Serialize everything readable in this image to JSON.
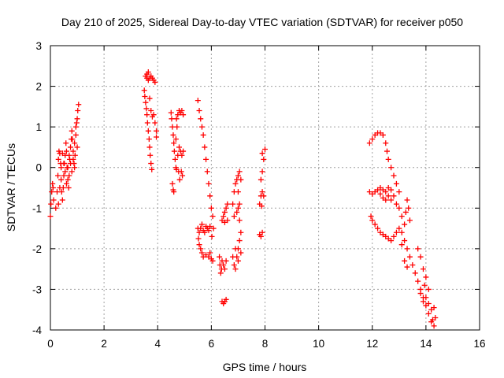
{
  "chart_data": {
    "type": "scatter",
    "title": "Day 210 of 2025, Sidereal Day-to-day VTEC variation (SDTVAR) for receiver p050",
    "xlabel": "GPS time / hours",
    "ylabel": "SDTVAR / TECUs",
    "xlim": [
      0,
      16
    ],
    "ylim": [
      -4,
      3
    ],
    "xticks": [
      "0",
      "2",
      "4",
      "6",
      "8",
      "10",
      "12",
      "14",
      "16"
    ],
    "yticks": [
      "-4",
      "-3",
      "-2",
      "-1",
      "0",
      "1",
      "2",
      "3"
    ],
    "grid": true,
    "marker": "plus",
    "color": "#ff0000",
    "series": [
      {
        "points": [
          [
            0.0,
            -1.2
          ],
          [
            0.02,
            -0.9
          ],
          [
            0.05,
            -0.6
          ],
          [
            0.08,
            -0.4
          ],
          [
            0.1,
            -0.5
          ],
          [
            0.12,
            -0.8
          ],
          [
            0.2,
            -1.0
          ],
          [
            0.25,
            -0.6
          ],
          [
            0.28,
            -0.2
          ],
          [
            0.3,
            0.2
          ],
          [
            0.32,
            0.4
          ],
          [
            0.35,
            0.35
          ],
          [
            0.38,
            0.1
          ],
          [
            0.4,
            -0.3
          ],
          [
            0.42,
            -0.6
          ],
          [
            0.45,
            -0.8
          ],
          [
            0.48,
            -0.5
          ],
          [
            0.5,
            -0.2
          ],
          [
            0.52,
            0.1
          ],
          [
            0.55,
            0.3
          ],
          [
            0.58,
            0.6
          ],
          [
            0.6,
            0.4
          ],
          [
            0.62,
            0.0
          ],
          [
            0.65,
            -0.3
          ],
          [
            0.68,
            -0.5
          ],
          [
            0.7,
            -0.2
          ],
          [
            0.72,
            0.2
          ],
          [
            0.75,
            0.5
          ],
          [
            0.78,
            0.7
          ],
          [
            0.8,
            0.9
          ],
          [
            0.82,
            0.7
          ],
          [
            0.85,
            0.4
          ],
          [
            0.88,
            0.1
          ],
          [
            0.9,
            0.0
          ],
          [
            0.92,
            0.3
          ],
          [
            0.95,
            0.8
          ],
          [
            0.98,
            1.1
          ],
          [
            1.0,
            1.2
          ],
          [
            1.02,
            1.4
          ],
          [
            1.05,
            1.55
          ],
          [
            0.3,
            -0.9
          ],
          [
            0.35,
            -0.5
          ],
          [
            0.4,
            0.0
          ],
          [
            0.45,
            0.35
          ],
          [
            0.5,
            0.1
          ],
          [
            0.55,
            -0.1
          ],
          [
            0.6,
            -0.4
          ],
          [
            0.65,
            0.0
          ],
          [
            0.7,
            0.3
          ],
          [
            0.75,
            0.1
          ],
          [
            0.8,
            -0.1
          ],
          [
            0.85,
            0.2
          ],
          [
            0.9,
            0.6
          ],
          [
            0.95,
            1.0
          ],
          [
            1.0,
            0.5
          ]
        ]
      },
      {
        "points": [
          [
            3.5,
            1.9
          ],
          [
            3.52,
            1.75
          ],
          [
            3.55,
            1.6
          ],
          [
            3.58,
            1.45
          ],
          [
            3.6,
            1.3
          ],
          [
            3.62,
            1.1
          ],
          [
            3.65,
            0.9
          ],
          [
            3.68,
            0.7
          ],
          [
            3.7,
            0.5
          ],
          [
            3.72,
            0.3
          ],
          [
            3.75,
            0.1
          ],
          [
            3.78,
            -0.05
          ],
          [
            3.55,
            2.25
          ],
          [
            3.6,
            2.3
          ],
          [
            3.65,
            2.35
          ],
          [
            3.7,
            2.2
          ],
          [
            3.75,
            2.25
          ],
          [
            3.8,
            2.2
          ],
          [
            3.85,
            2.15
          ],
          [
            3.9,
            2.1
          ],
          [
            3.6,
            2.2
          ],
          [
            3.65,
            2.15
          ],
          [
            3.7,
            1.7
          ],
          [
            3.75,
            1.4
          ],
          [
            3.8,
            1.25
          ],
          [
            3.85,
            1.3
          ],
          [
            3.9,
            1.1
          ],
          [
            3.95,
            0.9
          ],
          [
            3.95,
            0.75
          ]
        ]
      },
      {
        "points": [
          [
            4.5,
            1.35
          ],
          [
            4.52,
            1.2
          ],
          [
            4.55,
            1.0
          ],
          [
            4.58,
            0.8
          ],
          [
            4.6,
            0.6
          ],
          [
            4.62,
            0.4
          ],
          [
            4.65,
            0.2
          ],
          [
            4.68,
            0.0
          ],
          [
            4.7,
            -0.05
          ],
          [
            4.55,
            -0.4
          ],
          [
            4.58,
            -0.55
          ],
          [
            4.6,
            -0.6
          ],
          [
            4.75,
            0.3
          ],
          [
            4.8,
            0.5
          ],
          [
            4.85,
            0.4
          ],
          [
            4.9,
            0.3
          ],
          [
            4.95,
            0.4
          ],
          [
            4.78,
            -0.1
          ],
          [
            4.82,
            -0.3
          ],
          [
            4.88,
            -0.1
          ],
          [
            4.92,
            -0.2
          ],
          [
            4.7,
            1.2
          ],
          [
            4.75,
            1.3
          ],
          [
            4.8,
            1.4
          ],
          [
            4.85,
            1.35
          ],
          [
            4.9,
            1.4
          ],
          [
            4.95,
            1.3
          ],
          [
            4.72,
            1.0
          ],
          [
            4.68,
            0.7
          ]
        ]
      },
      {
        "points": [
          [
            5.5,
            1.65
          ],
          [
            5.55,
            1.4
          ],
          [
            5.6,
            1.2
          ],
          [
            5.65,
            1.0
          ],
          [
            5.7,
            0.8
          ],
          [
            5.75,
            0.5
          ],
          [
            5.8,
            0.2
          ],
          [
            5.85,
            -0.1
          ],
          [
            5.9,
            -0.4
          ],
          [
            5.95,
            -0.7
          ],
          [
            6.0,
            -1.0
          ],
          [
            6.05,
            -1.2
          ],
          [
            6.08,
            -1.5
          ],
          [
            5.5,
            -1.5
          ],
          [
            5.55,
            -1.6
          ],
          [
            5.6,
            -1.5
          ],
          [
            5.65,
            -1.4
          ],
          [
            5.7,
            -1.55
          ],
          [
            5.75,
            -1.6
          ],
          [
            5.8,
            -1.45
          ],
          [
            5.85,
            -1.5
          ],
          [
            5.9,
            -1.55
          ],
          [
            5.95,
            -1.45
          ],
          [
            5.55,
            -1.9
          ],
          [
            5.6,
            -2.0
          ],
          [
            5.65,
            -2.1
          ],
          [
            5.7,
            -2.2
          ],
          [
            5.8,
            -2.15
          ],
          [
            5.9,
            -2.2
          ],
          [
            5.95,
            -2.1
          ],
          [
            6.0,
            -2.25
          ],
          [
            6.05,
            -2.3
          ],
          [
            5.52,
            -1.75
          ],
          [
            6.02,
            -1.7
          ]
        ]
      },
      {
        "points": [
          [
            6.3,
            -2.2
          ],
          [
            6.32,
            -2.4
          ],
          [
            6.35,
            -2.6
          ],
          [
            6.38,
            -2.5
          ],
          [
            6.4,
            -2.3
          ],
          [
            6.45,
            -2.4
          ],
          [
            6.5,
            -2.5
          ],
          [
            6.55,
            -2.3
          ],
          [
            6.4,
            -1.3
          ],
          [
            6.45,
            -1.2
          ],
          [
            6.5,
            -1.1
          ],
          [
            6.55,
            -1.0
          ],
          [
            6.6,
            -0.9
          ],
          [
            6.5,
            -1.35
          ],
          [
            6.6,
            -1.3
          ],
          [
            6.4,
            -3.3
          ],
          [
            6.45,
            -3.35
          ],
          [
            6.5,
            -3.3
          ],
          [
            6.55,
            -3.25
          ]
        ]
      },
      {
        "points": [
          [
            6.8,
            -2.2
          ],
          [
            6.85,
            -2.4
          ],
          [
            6.9,
            -2.5
          ],
          [
            6.95,
            -2.2
          ],
          [
            7.0,
            -2.0
          ],
          [
            7.05,
            -1.8
          ],
          [
            7.1,
            -1.6
          ],
          [
            6.8,
            -0.9
          ],
          [
            6.85,
            -0.6
          ],
          [
            6.9,
            -0.4
          ],
          [
            6.95,
            -0.3
          ],
          [
            7.0,
            -0.2
          ],
          [
            7.05,
            -0.1
          ],
          [
            7.1,
            -0.3
          ],
          [
            7.0,
            -0.6
          ],
          [
            7.05,
            -0.9
          ],
          [
            7.0,
            -1.0
          ],
          [
            6.85,
            -1.2
          ],
          [
            6.95,
            -1.1
          ],
          [
            7.05,
            -1.3
          ],
          [
            6.9,
            -2.0
          ],
          [
            7.0,
            -2.3
          ],
          [
            7.1,
            -2.1
          ]
        ]
      },
      {
        "points": [
          [
            7.8,
            -1.65
          ],
          [
            7.85,
            -1.7
          ],
          [
            7.9,
            -1.6
          ],
          [
            7.8,
            -0.9
          ],
          [
            7.85,
            -0.7
          ],
          [
            7.9,
            -0.6
          ],
          [
            7.95,
            -0.7
          ],
          [
            7.85,
            -0.3
          ],
          [
            7.9,
            -0.1
          ],
          [
            7.95,
            0.2
          ],
          [
            8.0,
            0.45
          ],
          [
            7.9,
            0.35
          ],
          [
            7.88,
            -0.95
          ]
        ]
      },
      {
        "points": [
          [
            11.9,
            0.6
          ],
          [
            12.0,
            0.7
          ],
          [
            12.1,
            0.8
          ],
          [
            12.2,
            0.85
          ],
          [
            12.3,
            0.85
          ],
          [
            12.4,
            0.8
          ],
          [
            12.5,
            0.6
          ],
          [
            12.55,
            0.4
          ],
          [
            12.6,
            0.2
          ],
          [
            12.7,
            0.0
          ],
          [
            12.8,
            -0.2
          ],
          [
            12.9,
            -0.4
          ],
          [
            13.0,
            -0.6
          ],
          [
            11.9,
            -0.6
          ],
          [
            12.0,
            -0.65
          ],
          [
            12.1,
            -0.6
          ],
          [
            12.2,
            -0.55
          ],
          [
            12.3,
            -0.5
          ],
          [
            12.4,
            -0.55
          ],
          [
            12.5,
            -0.6
          ],
          [
            12.6,
            -0.7
          ],
          [
            12.7,
            -0.8
          ],
          [
            12.5,
            -0.8
          ],
          [
            12.4,
            -0.75
          ],
          [
            12.3,
            -0.65
          ],
          [
            12.6,
            -0.5
          ],
          [
            12.7,
            -0.55
          ],
          [
            12.8,
            -0.7
          ],
          [
            12.9,
            -0.9
          ],
          [
            13.0,
            -1.0
          ],
          [
            13.1,
            -1.2
          ],
          [
            13.2,
            -1.4
          ],
          [
            13.25,
            -1.1
          ],
          [
            13.3,
            -0.8
          ],
          [
            13.35,
            -1.0
          ],
          [
            13.4,
            -1.3
          ],
          [
            11.95,
            -1.2
          ],
          [
            12.0,
            -1.3
          ],
          [
            12.1,
            -1.4
          ],
          [
            12.2,
            -1.5
          ],
          [
            12.3,
            -1.6
          ],
          [
            12.4,
            -1.65
          ],
          [
            12.5,
            -1.7
          ],
          [
            12.6,
            -1.75
          ],
          [
            12.7,
            -1.8
          ],
          [
            12.8,
            -1.7
          ],
          [
            12.9,
            -1.6
          ],
          [
            13.0,
            -1.5
          ],
          [
            13.1,
            -1.6
          ],
          [
            13.2,
            -1.8
          ],
          [
            13.3,
            -2.0
          ],
          [
            13.4,
            -2.2
          ],
          [
            13.5,
            -2.4
          ],
          [
            13.2,
            -2.3
          ],
          [
            13.3,
            -2.45
          ],
          [
            13.1,
            -1.9
          ]
        ]
      },
      {
        "points": [
          [
            13.6,
            -2.6
          ],
          [
            13.7,
            -2.8
          ],
          [
            13.8,
            -3.0
          ],
          [
            13.9,
            -3.2
          ],
          [
            14.0,
            -3.4
          ],
          [
            14.1,
            -3.6
          ],
          [
            14.2,
            -3.8
          ],
          [
            14.3,
            -3.9
          ],
          [
            13.7,
            -2.0
          ],
          [
            13.8,
            -2.2
          ],
          [
            13.9,
            -2.5
          ],
          [
            14.0,
            -2.7
          ],
          [
            14.1,
            -3.0
          ],
          [
            13.8,
            -3.1
          ],
          [
            13.9,
            -3.3
          ],
          [
            14.0,
            -3.2
          ],
          [
            14.1,
            -3.35
          ],
          [
            14.2,
            -3.5
          ],
          [
            14.3,
            -3.45
          ],
          [
            14.35,
            -3.7
          ],
          [
            14.25,
            -3.75
          ],
          [
            13.95,
            -2.9
          ]
        ]
      }
    ]
  }
}
